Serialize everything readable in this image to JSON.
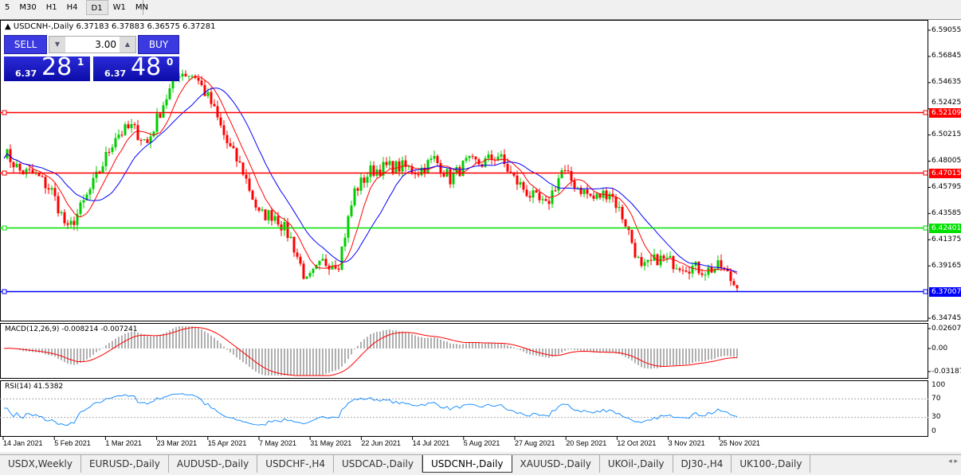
{
  "toolbar": {
    "timeframes": [
      "5",
      "M30",
      "H1",
      "H4",
      "D1",
      "W1",
      "MN"
    ],
    "active": "D1"
  },
  "chart": {
    "header": "USDCNH-,Daily  6.37183 6.37883 6.36575 6.37281",
    "trade_panel": {
      "sell_label": "SELL",
      "buy_label": "BUY",
      "volume": "3.00",
      "sell_big": "6.37",
      "sell_mid": "28",
      "sell_sup": "1",
      "buy_big": "6.37",
      "buy_mid": "48",
      "buy_sup": "0"
    },
    "price_axis": [
      "6.59055",
      "6.56845",
      "6.54635",
      "6.52425",
      "6.50215",
      "6.48005",
      "6.45795",
      "6.43585",
      "6.41375",
      "6.39165",
      "6.34745"
    ],
    "hlines": [
      {
        "price": "6.52109",
        "color": "#ff0000"
      },
      {
        "price": "6.47015",
        "color": "#ff0000"
      },
      {
        "price": "6.42401",
        "color": "#00e000"
      },
      {
        "price": "6.37007",
        "color": "#0000ff"
      }
    ],
    "macd": {
      "label": "MACD(12,26,9) -0.008214 -0.007241",
      "axis": [
        "0.02607",
        "0.00",
        "-0.03187"
      ]
    },
    "rsi": {
      "label": "RSI(14) 41.5382",
      "axis": [
        "100",
        "70",
        "30",
        "0"
      ]
    },
    "dates": [
      "14 Jan 2021",
      "5 Feb 2021",
      "1 Mar 2021",
      "23 Mar 2021",
      "15 Apr 2021",
      "7 May 2021",
      "31 May 2021",
      "22 Jun 2021",
      "14 Jul 2021",
      "5 Aug 2021",
      "27 Aug 2021",
      "20 Sep 2021",
      "12 Oct 2021",
      "3 Nov 2021",
      "25 Nov 2021"
    ],
    "colors": {
      "bull": "#00cc00",
      "bear": "#ff0000",
      "ma_fast": "#ff0000",
      "ma_slow": "#0000ff",
      "rsi": "#1e90ff",
      "macd_hist": "#b0b0b0",
      "macd_signal": "#ff0000"
    }
  },
  "chart_data": {
    "type": "candlestick",
    "symbol": "USDCNH-",
    "timeframe": "Daily",
    "ylim": [
      6.34745,
      6.59055
    ],
    "approx_closes_5day": [
      6.4885,
      6.4717,
      6.4684,
      6.4549,
      6.4213,
      6.4448,
      6.4717,
      6.5019,
      6.5086,
      6.4952,
      6.5288,
      6.5556,
      6.5523,
      6.5288,
      6.4952,
      6.4717,
      6.4348,
      6.4348,
      6.4146,
      6.3777,
      6.3945,
      6.3945,
      6.4549,
      6.4717,
      6.4751,
      6.4751,
      6.4717,
      6.4818,
      6.465,
      6.4784,
      6.4784,
      6.4851,
      6.465,
      6.4516,
      6.4415,
      6.4717,
      6.4583,
      6.4482,
      6.4549,
      6.4281,
      6.3878,
      6.3979,
      6.3945,
      6.3911,
      6.3878,
      6.3911,
      6.3728
    ]
  },
  "tabs": [
    "USDX,Weekly",
    "EURUSD-,Daily",
    "AUDUSD-,Daily",
    "USDCHF-,H4",
    "USDCAD-,Daily",
    "USDCNH-,Daily",
    "XAUUSD-,Daily",
    "UKOil-,Daily",
    "DJ30-,H4",
    "UK100-,Daily"
  ],
  "active_tab": "USDCNH-,Daily"
}
